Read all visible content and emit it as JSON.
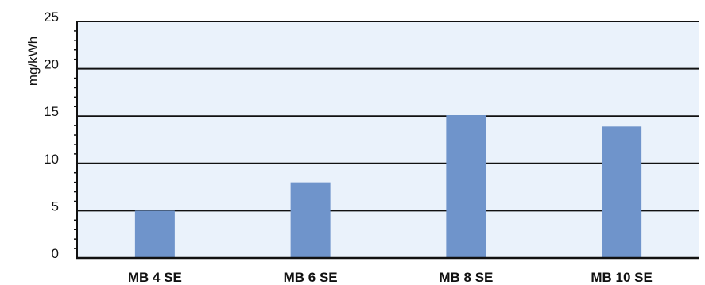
{
  "chart_data": {
    "type": "bar",
    "title": "",
    "xlabel": "",
    "ylabel": "mg/kWh",
    "categories": [
      "MB 4 SE",
      "MB 6 SE",
      "MB 8 SE",
      "MB 10 SE"
    ],
    "values": [
      5,
      8,
      15.1,
      13.9
    ],
    "ylim": [
      0,
      25
    ],
    "yticks": [
      "0",
      "5",
      "10",
      "15",
      "20",
      "25"
    ],
    "grid": true,
    "legend": "none",
    "colors": {
      "bar": "#6f94cb",
      "plot_background": "#eaf2fb",
      "gridline": "#111111",
      "axis": "#111111"
    }
  }
}
